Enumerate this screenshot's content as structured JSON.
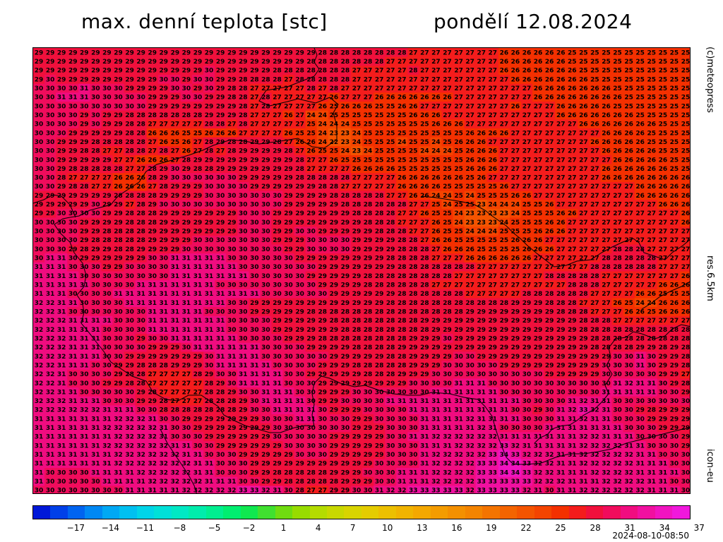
{
  "header": {
    "title": "max. denní teplota [stc]",
    "date": "pondělí 12.08.2024"
  },
  "side_labels": {
    "credit": "(c)meteopress",
    "resolution": "res.6.5km",
    "model": "icon-eu"
  },
  "timestamp": "2024-08-10-08:50",
  "legend": {
    "ticks": [
      "-17",
      "-14",
      "-11",
      "-8",
      "-5",
      "-2",
      "1",
      "4",
      "7",
      "10",
      "13",
      "16",
      "19",
      "22",
      "25",
      "28",
      "31",
      "34",
      "37"
    ],
    "colors": [
      "#0018d8",
      "#0040e8",
      "#0064f0",
      "#0088f4",
      "#00a8f4",
      "#00c0f0",
      "#00d4e8",
      "#00e0d8",
      "#00e8c4",
      "#00ecac",
      "#00ee90",
      "#00ee70",
      "#10e850",
      "#40e030",
      "#70dc10",
      "#98dc00",
      "#b4dc00",
      "#c8d800",
      "#d8d400",
      "#e4cc00",
      "#ecc000",
      "#f0b400",
      "#f4a800",
      "#f49c00",
      "#f49000",
      "#f48400",
      "#f47400",
      "#f46400",
      "#f45400",
      "#f44400",
      "#f43000",
      "#f41c1c",
      "#f0103c",
      "#f00c5c",
      "#f00c80",
      "#f010a0",
      "#f014c0",
      "#f018dc"
    ]
  },
  "map_data": {
    "rows": [
      "29 29 29 29 29 29 29 29 29 29 29 29 29 29 29 29 29 29 29 29 29 29 29 29 29 28 28 28 28 28 28 28 28 27 27 27 27 27 27 27 27 26 26 26 26 26 26 25 25 25 25 25 25 25 25 25 25 25",
      "29 29 29 29 29 29 29 29 29 29 29 29 29 29 29 29 29 29 29 29 29 29 29 29 28 28 28 28 28 28 28 27 27 27 27 27 27 27 27 27 27 26 26 26 26 26 26 25 25 25 25 25 25 25 25 25 25 25",
      "29 29 29 29 29 29 29 29 29 29 29 29 29 29 29 30 29 29 29 29 29 28 28 28 28 28 28 28 27 27 27 27 27 28 27 27 27 27 27 27 27 26 26 26 26 26 26 26 25 25 25 25 25 25 25 25 25 25",
      "29 30 29 29 29 29 29 29 29 29 29 30 30 29 30 30 29 29 28 28 28 28 27 28 28 28 28 28 27 27 27 27 27 27 27 27 27 27 27 27 27 27 26 26 26 26 26 26 26 25 25 25 25 25 25 25 25 25",
      "30 30 30 30 31 30 30 30 29 29 29 29 30 30 29 30 29 28 28 27 27 27 27 27 28 27 28 27 27 27 27 27 27 27 27 27 27 27 27 27 27 27 27 27 26 26 26 26 26 26 26 25 25 25 25 25 25 25",
      "30 30 31 31 31 30 30 30 30 30 29 29 29 30 30 29 29 28 28 27 28 27 27 27 27 27 26 27 27 27 26 26 26 26 26 26 26 27 27 27 27 27 27 27 26 26 26 26 26 26 26 26 25 25 25 25 25 25",
      "30 30 30 30 30 30 30 30 30 30 29 29 29 29 29 29 29 29 28 27 28 27 27 27 27 26 25 26 26 26 25 25 26 26 27 27 27 27 27 27 27 27 26 27 27 27 26 26 26 26 26 25 25 25 25 25 25 25",
      "30 30 30 30 29 30 29 29 28 28 28 28 28 28 28 29 29 29 28 27 27 27 26 27 24 24 25 25 25 25 25 25 25 26 26 26 27 27 27 27 27 27 27 27 27 27 26 26 26 26 26 26 26 25 25 25 25 25",
      "30 30 30 30 29 30 29 29 28 28 27 27 27 27 27 28 28 27 28 27 27 27 27 27 25 24 24 24 25 25 25 25 25 25 25 26 26 26 27 27 27 27 27 27 27 27 27 27 26 26 26 26 26 26 26 25 25 25",
      "30 30 30 29 29 29 29 29 28 28 26 26 26 25 25 26 26 26 27 27 27 27 26 25 25 24 23 23 24 25 25 25 25 25 25 25 25 25 26 26 26 26 27 27 27 27 27 27 27 27 26 26 26 26 25 25 25 25",
      "30 30 29 29 29 28 28 28 28 28 27 26 25 26 27 28 29 28 28 29 29 28 27 26 26 24 22 23 24 25 25 25 24 25 25 24 25 26 26 26 27 27 27 27 27 27 27 27 27 26 26 26 26 26 25 25 25 25",
      "30 30 29 29 28 28 27 27 28 28 27 28 27 26 27 28 27 28 29 29 29 29 28 27 26 25 25 24 23 24 25 25 25 25 24 24 24 25 26 26 26 27 27 27 27 27 27 27 27 27 26 26 26 26 26 25 25 25",
      "30 30 29 29 29 29 29 27 27 26 26 26 27 28 29 29 29 29 29 29 29 29 29 28 27 27 26 25 25 25 25 25 25 25 25 25 25 25 26 26 26 27 27 27 27 27 27 27 27 27 27 26 26 26 26 26 25 25",
      "30 30 29 28 28 28 28 28 27 27 28 29 30 29 28 28 29 29 29 29 29 29 29 28 27 27 27 27 26 26 26 26 25 25 25 25 25 25 26 26 26 27 27 27 27 27 27 27 27 27 26 26 26 26 26 26 25 25",
      "30 30 28 27 27 27 27 26 26 26 28 29 30 30 30 30 30 30 29 29 29 29 29 28 28 28 28 28 27 27 27 27 26 26 26 26 26 26 25 26 27 27 27 27 27 27 27 27 27 27 26 26 26 26 26 26 26 26",
      "30 30 29 28 28 27 27 26 26 26 27 28 29 29 29 30 30 30 30 29 29 29 29 29 29 28 28 27 27 27 27 27 26 26 26 26 25 25 25 25 25 26 27 27 27 27 27 27 27 27 27 27 27 26 26 26 26 26",
      "29 29 29 29 29 29 29 28 28 28 28 29 29 29 29 30 30 30 30 30 30 30 29 29 29 29 28 28 28 28 28 27 27 26 26 24 24 25 24 25 25 25 26 26 27 27 27 27 27 27 27 27 27 26 26 26 26 26",
      "29 29 29 29 29 30 29 29 27 28 29 30 30 30 30 30 30 30 30 30 30 30 29 29 29 29 29 28 28 28 28 28 28 27 27 25 24 25 25 23 24 24 24 25 25 26 27 27 27 27 27 27 27 27 27 26 26 26",
      "29 29 30 30 30 30 29 29 28 28 28 29 29 29 29 29 29 29 30 30 30 29 29 29 29 29 29 29 28 28 28 28 27 27 26 25 25 24 23 23 23 23 24 25 25 25 26 26 27 27 27 27 27 27 27 27 27 26",
      "30 30 30 30 29 29 29 29 28 28 28 29 29 29 29 29 29 29 30 30 30 29 29 29 29 29 29 29 29 28 28 28 27 27 27 26 25 24 23 23 23 24 25 25 25 26 26 27 27 27 27 27 27 27 27 27 27 26",
      "30 30 30 30 29 29 28 28 28 28 29 29 29 29 29 29 29 29 30 30 30 29 29 30 30 29 29 29 29 29 28 28 28 27 27 26 25 25 24 24 24 25 25 25 26 26 26 27 27 27 27 27 27 27 27 27 27 27",
      "30 30 30 30 29 28 28 28 28 28 29 29 29 29 30 30 30 30 30 30 30 29 29 29 30 30 30 30 29 29 29 29 28 28 27 26 26 25 25 25 25 25 26 26 26 27 27 27 27 27 27 27 27 27 27 27 27 27",
      "30 30 30 29 28 29 29 28 28 29 29 29 29 30 30 30 30 30 30 30 30 30 29 29 30 30 30 30 29 29 29 29 28 28 28 27 26 26 26 25 25 25 25 26 26 26 27 27 27 27 27 28 28 28 27 27 27 27",
      "30 31 31 30 29 29 29 29 29 29 30 30 31 31 31 31 31 30 30 30 30 30 30 29 29 29 29 29 29 29 29 28 28 28 28 27 27 27 26 26 26 26 26 26 27 27 27 27 27 27 28 28 28 28 28 27 27 27",
      "31 31 31 30 30 30 29 29 30 30 30 30 31 31 31 31 31 31 30 30 30 30 30 30 30 29 29 29 29 29 29 29 28 28 28 28 28 28 28 27 27 27 27 27 27 27 27 27 27 28 28 28 28 28 28 27 27 27",
      "31 31 31 31 30 30 30 30 30 30 30 30 31 31 31 31 31 31 31 30 30 30 30 30 29 29 29 29 29 28 28 28 28 28 28 28 28 27 27 27 27 27 27 27 27 28 28 28 28 28 27 27 27 27 27 27 27 26",
      "31 31 31 31 31 30 30 30 30 31 31 31 31 31 31 31 30 30 30 30 30 30 30 30 30 29 29 29 29 28 28 28 28 28 28 27 27 27 27 27 27 27 27 27 27 27 27 28 28 28 27 27 27 27 27 26 26 26",
      "31 31 31 30 30 30 30 31 31 31 31 31 31 31 31 31 31 31 31 31 30 30 30 30 30 30 29 29 29 29 29 29 28 28 28 28 28 28 27 27 27 27 27 28 28 28 28 28 28 27 27 27 27 26 26 25 25 25",
      "32 32 31 31 30 30 30 30 31 31 31 31 31 31 31 31 31 30 30 29 29 29 29 29 29 29 29 29 29 29 29 28 28 28 28 28 28 28 28 28 28 28 29 29 29 28 28 28 27 27 27 26 25 24 24 26 26 26",
      "32 32 31 30 30 30 30 30 30 30 31 31 31 31 31 30 30 30 30 29 29 29 29 29 28 28 28 28 28 28 28 28 28 28 28 28 28 28 29 29 29 29 29 29 29 29 28 28 28 27 27 27 26 26 25 26 26 26",
      "32 32 32 31 31 31 31 30 30 30 31 31 31 31 31 31 31 30 30 30 30 29 29 29 29 29 28 28 28 28 28 28 28 28 29 29 29 29 29 29 29 29 29 29 29 29 29 29 28 28 28 27 27 27 27 27 27 27",
      "32 32 31 31 31 31 30 30 30 30 31 31 31 31 31 31 31 30 30 30 30 29 29 29 29 29 29 28 28 28 28 28 28 28 28 29 29 29 29 29 29 29 29 29 29 29 29 29 28 28 28 28 28 28 28 28 28 28",
      "32 32 32 31 31 31 30 30 30 29 30 30 31 31 31 31 31 31 30 30 30 30 29 29 29 28 28 28 28 28 28 28 28 29 29 29 30 29 29 29 29 29 29 29 29 29 29 29 29 28 28 28 28 28 28 28 28 28",
      "32 32 32 31 31 31 30 30 30 30 29 29 29 30 31 31 31 31 31 31 30 30 30 30 29 29 29 29 28 28 28 28 29 29 29 29 29 29 29 29 29 29 29 29 29 29 29 29 29 28 28 28 28 29 29 28 29 28",
      "32 32 32 31 31 31 30 30 29 29 29 29 29 29 29 30 31 31 31 31 30 30 30 30 30 30 29 29 29 29 29 28 28 29 29 29 29 30 30 29 29 29 29 29 29 29 29 29 29 29 29 30 30 31 30 29 29 28",
      "32 32 31 31 31 30 30 29 29 28 28 28 29 29 29 30 31 31 31 31 31 30 30 30 30 29 29 29 28 28 28 28 28 29 29 29 30 30 30 30 30 29 29 29 29 29 29 29 29 29 30 30 30 31 30 29 29 28",
      "32 32 31 30 30 30 30 29 28 28 27 27 27 27 28 29 30 30 31 31 31 31 30 30 29 29 29 29 29 28 28 28 29 29 29 30 30 30 30 30 30 30 30 30 30 29 29 29 29 29 30 30 30 30 30 29 29 27",
      "32 32 31 30 30 30 29 29 28 28 27 27 27 27 27 28 29 30 31 31 31 31 30 30 30 29 29 29 29 29 29 29 29 30 30 30 30 31 31 31 30 30 30 30 30 30 30 30 30 30 30 31 32 31 31 30 29 28",
      "32 32 31 31 30 30 30 30 30 29 28 27 27 27 27 28 28 29 30 30 31 31 31 30 30 29 29 29 30 30 30 30 30 30 30 31 31 31 31 31 31 30 30 30 30 30 30 30 30 30 31 31 31 31 31 30 30 29",
      "32 32 32 31 31 31 30 30 30 29 29 28 27 27 27 28 28 28 29 30 31 31 31 31 30 29 29 30 30 30 30 31 31 31 31 31 31 31 31 31 31 31 31 30 30 30 30 31 32 31 31 30 30 30 30 30 30 30",
      "32 32 32 32 32 32 31 31 31 30 30 28 28 28 28 28 28 28 29 30 30 31 31 31 31 30 29 29 29 30 30 30 30 31 31 31 31 31 31 31 31 31 30 30 29 30 31 32 33 32 31 30 30 29 28 29 29 29",
      "31 31 31 31 31 31 31 32 32 32 31 30 30 29 29 29 29 29 29 29 30 30 30 31 31 30 30 30 29 29 30 30 30 30 31 31 31 31 32 31 31 31 31 30 30 30 31 31 32 31 31 30 30 30 29 29 29 29",
      "31 31 31 31 31 31 32 32 32 32 32 31 30 30 29 29 29 29 29 29 29 30 30 30 30 30 30 30 29 29 29 30 30 30 31 31 31 31 31 32 31 30 30 30 30 31 31 31 31 31 31 31 30 30 30 29 29 29",
      "31 31 31 31 31 31 31 32 32 32 32 31 30 30 30 29 29 29 29 29 29 30 30 30 30 30 29 29 29 29 29 30 30 31 31 32 32 32 32 32 32 31 31 31 31 31 31 31 32 32 31 31 31 30 30 30 30 29",
      "31 31 31 31 31 31 32 32 32 32 32 32 31 31 30 30 29 29 29 29 29 29 30 30 30 30 29 29 29 29 29 30 30 30 31 31 31 32 32 32 32 33 32 31 31 31 31 31 32 32 32 32 31 31 30 30 30 29",
      "31 31 31 31 31 31 31 32 32 32 32 32 32 31 31 30 30 30 29 29 29 29 29 30 30 30 29 29 29 29 29 30 30 30 31 32 32 32 32 32 33 34 33 32 32 32 31 31 32 32 32 32 32 31 31 30 30 30",
      "31 31 31 31 31 31 31 32 32 32 32 32 32 32 31 31 30 30 30 29 29 29 29 29 29 29 29 29 29 29 30 30 30 30 31 32 32 32 32 33 33 34 34 33 32 32 31 31 32 32 32 32 32 31 31 31 30 30",
      "31 30 30 30 30 31 31 31 31 32 32 32 32 32 31 31 30 30 30 29 29 28 28 28 28 28 29 29 29 30 30 30 31 31 31 32 32 32 32 33 33 34 34 33 32 32 31 31 31 32 32 32 32 31 31 31 31 30",
      "31 30 30 30 30 30 31 31 31 31 32 32 32 32 32 31 31 31 30 30 29 29 28 28 28 28 28 29 29 29 30 30 31 31 31 32 32 32 32 33 33 33 33 33 32 32 32 31 31 31 32 32 32 32 31 31 30 30",
      "30 30 30 30 30 30 30 30 31 31 31 31 31 32 32 32 32 32 33 33 32 31 30 28 27 27 29 29 30 30 31 32 32 33 33 33 33 33 32 33 33 33 33 32 31 30 31 31 32 32 32 32 32 32 31 31 31 30"
    ]
  }
}
